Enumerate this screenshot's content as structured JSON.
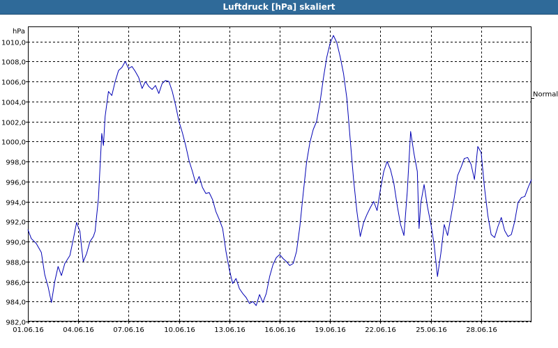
{
  "window": {
    "title": "Luftdruck [hPa] skaliert"
  },
  "colors": {
    "title_bar": "#2f6a99",
    "line": "#0000b4",
    "grid": "#000000"
  },
  "chart_data": {
    "type": "line",
    "title": "Luftdruck [hPa] skaliert",
    "unit_label": "hPa",
    "reference_label": "Normal",
    "reference_value": 1004.3,
    "xlabel": "",
    "ylabel": "",
    "ylim": [
      982.0,
      1011.5
    ],
    "y_ticks": [
      "982,0",
      "984,0",
      "986,0",
      "988,0",
      "990,0",
      "992,0",
      "994,0",
      "996,0",
      "998,0",
      "1000,0",
      "1002,0",
      "1004,0",
      "1006,0",
      "1008,0",
      "1010,0"
    ],
    "x_ticks": [
      "01.06.16",
      "04.06.16",
      "07.06.16",
      "10.06.16",
      "13.06.16",
      "16.06.16",
      "19.06.16",
      "22.06.16",
      "25.06.16",
      "28.06.16"
    ],
    "xlim_days": [
      1,
      31
    ],
    "grid": true,
    "series": [
      {
        "name": "",
        "points": [
          [
            1.0,
            991.2
          ],
          [
            1.2,
            990.3
          ],
          [
            1.5,
            989.8
          ],
          [
            1.8,
            988.9
          ],
          [
            2.0,
            986.7
          ],
          [
            2.2,
            985.5
          ],
          [
            2.4,
            983.9
          ],
          [
            2.6,
            986.0
          ],
          [
            2.8,
            987.5
          ],
          [
            3.0,
            986.6
          ],
          [
            3.2,
            987.8
          ],
          [
            3.5,
            988.6
          ],
          [
            3.7,
            990.2
          ],
          [
            3.9,
            991.9
          ],
          [
            4.1,
            991.0
          ],
          [
            4.2,
            989.4
          ],
          [
            4.3,
            988.0
          ],
          [
            4.5,
            988.8
          ],
          [
            4.7,
            990.0
          ],
          [
            4.9,
            990.5
          ],
          [
            5.0,
            991.0
          ],
          [
            5.2,
            994.3
          ],
          [
            5.4,
            1000.8
          ],
          [
            5.5,
            999.6
          ],
          [
            5.6,
            1002.5
          ],
          [
            5.8,
            1005.0
          ],
          [
            6.0,
            1004.6
          ],
          [
            6.2,
            1006.0
          ],
          [
            6.4,
            1007.1
          ],
          [
            6.6,
            1007.4
          ],
          [
            6.8,
            1008.0
          ],
          [
            7.0,
            1007.3
          ],
          [
            7.2,
            1007.5
          ],
          [
            7.4,
            1007.0
          ],
          [
            7.6,
            1006.4
          ],
          [
            7.8,
            1005.3
          ],
          [
            8.0,
            1006.0
          ],
          [
            8.2,
            1005.5
          ],
          [
            8.4,
            1005.2
          ],
          [
            8.6,
            1005.6
          ],
          [
            8.8,
            1004.8
          ],
          [
            9.0,
            1005.8
          ],
          [
            9.2,
            1006.1
          ],
          [
            9.4,
            1006.0
          ],
          [
            9.6,
            1005.0
          ],
          [
            9.8,
            1003.6
          ],
          [
            10.0,
            1002.0
          ],
          [
            10.2,
            1000.9
          ],
          [
            10.4,
            999.6
          ],
          [
            10.6,
            998.1
          ],
          [
            10.8,
            997.0
          ],
          [
            11.0,
            995.8
          ],
          [
            11.2,
            996.5
          ],
          [
            11.4,
            995.4
          ],
          [
            11.6,
            994.8
          ],
          [
            11.8,
            994.9
          ],
          [
            12.0,
            994.2
          ],
          [
            12.2,
            993.0
          ],
          [
            12.4,
            992.2
          ],
          [
            12.6,
            991.3
          ],
          [
            12.8,
            989.0
          ],
          [
            13.0,
            987.2
          ],
          [
            13.2,
            985.8
          ],
          [
            13.4,
            986.3
          ],
          [
            13.6,
            985.3
          ],
          [
            13.8,
            984.8
          ],
          [
            14.0,
            984.4
          ],
          [
            14.2,
            983.8
          ],
          [
            14.4,
            984.0
          ],
          [
            14.6,
            983.6
          ],
          [
            14.8,
            984.7
          ],
          [
            15.0,
            983.9
          ],
          [
            15.2,
            984.8
          ],
          [
            15.4,
            986.5
          ],
          [
            15.6,
            987.7
          ],
          [
            15.8,
            988.4
          ],
          [
            16.0,
            988.7
          ],
          [
            16.2,
            988.3
          ],
          [
            16.4,
            988.0
          ],
          [
            16.6,
            987.6
          ],
          [
            16.8,
            987.8
          ],
          [
            17.0,
            989.0
          ],
          [
            17.2,
            991.5
          ],
          [
            17.4,
            994.8
          ],
          [
            17.6,
            997.9
          ],
          [
            17.8,
            999.9
          ],
          [
            18.0,
            1001.2
          ],
          [
            18.2,
            1002.0
          ],
          [
            18.4,
            1003.9
          ],
          [
            18.6,
            1006.3
          ],
          [
            18.8,
            1008.4
          ],
          [
            19.0,
            1009.8
          ],
          [
            19.2,
            1010.6
          ],
          [
            19.4,
            1009.9
          ],
          [
            19.6,
            1008.5
          ],
          [
            19.8,
            1006.8
          ],
          [
            20.0,
            1004.3
          ],
          [
            20.2,
            1000.2
          ],
          [
            20.4,
            996.2
          ],
          [
            20.6,
            993.0
          ],
          [
            20.8,
            990.5
          ],
          [
            21.0,
            991.9
          ],
          [
            21.2,
            992.7
          ],
          [
            21.4,
            993.4
          ],
          [
            21.6,
            994.0
          ],
          [
            21.8,
            993.1
          ],
          [
            22.0,
            995.2
          ],
          [
            22.2,
            997.0
          ],
          [
            22.4,
            998.0
          ],
          [
            22.6,
            997.2
          ],
          [
            22.8,
            995.8
          ],
          [
            23.0,
            993.6
          ],
          [
            23.2,
            991.7
          ],
          [
            23.4,
            990.6
          ],
          [
            23.6,
            995.0
          ],
          [
            23.8,
            1001.0
          ],
          [
            24.0,
            998.8
          ],
          [
            24.2,
            997.0
          ],
          [
            24.3,
            991.3
          ],
          [
            24.4,
            993.8
          ],
          [
            24.6,
            995.7
          ],
          [
            24.8,
            993.5
          ],
          [
            25.0,
            991.8
          ],
          [
            25.2,
            989.7
          ],
          [
            25.4,
            986.5
          ],
          [
            25.6,
            988.8
          ],
          [
            25.8,
            991.7
          ],
          [
            26.0,
            990.6
          ],
          [
            26.2,
            992.5
          ],
          [
            26.4,
            994.4
          ],
          [
            26.6,
            996.6
          ],
          [
            26.8,
            997.4
          ],
          [
            27.0,
            998.3
          ],
          [
            27.2,
            998.4
          ],
          [
            27.4,
            997.7
          ],
          [
            27.6,
            996.2
          ],
          [
            27.8,
            999.5
          ],
          [
            28.0,
            998.9
          ],
          [
            28.2,
            995.4
          ],
          [
            28.4,
            992.6
          ],
          [
            28.6,
            990.7
          ],
          [
            28.8,
            990.4
          ],
          [
            29.0,
            991.5
          ],
          [
            29.2,
            992.4
          ],
          [
            29.4,
            991.1
          ],
          [
            29.6,
            990.5
          ],
          [
            29.8,
            990.7
          ],
          [
            30.0,
            992.0
          ],
          [
            30.2,
            993.9
          ],
          [
            30.4,
            994.4
          ],
          [
            30.6,
            994.5
          ],
          [
            30.8,
            995.4
          ],
          [
            31.0,
            996.2
          ]
        ]
      }
    ]
  }
}
